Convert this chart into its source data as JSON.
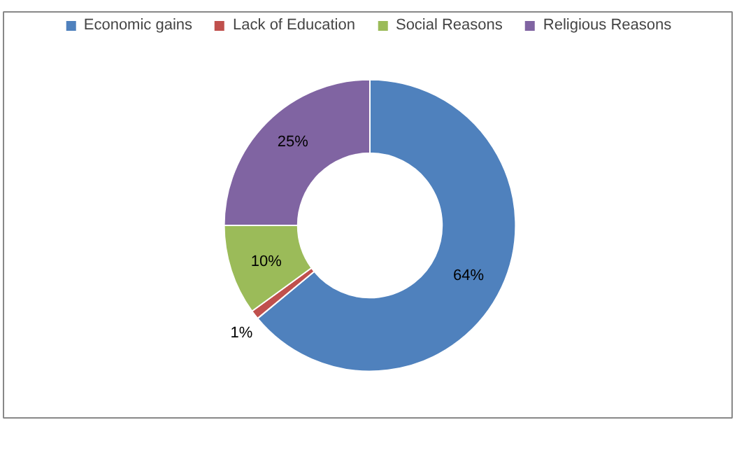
{
  "chart_data": {
    "type": "donut",
    "categories": [
      "Economic gains",
      "Lack of Education",
      "Social Reasons",
      "Religious Reasons"
    ],
    "values": [
      64,
      1,
      10,
      25
    ],
    "colors": [
      "#4f81bd",
      "#c0504d",
      "#9bbb59",
      "#8064a2"
    ],
    "value_labels": [
      "64%",
      "1%",
      "10%",
      "25%"
    ],
    "legend": "top"
  }
}
